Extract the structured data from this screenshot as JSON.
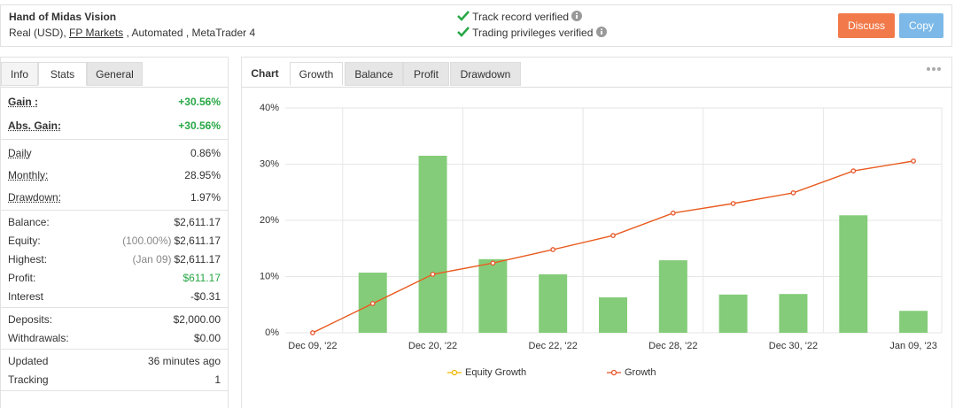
{
  "header": {
    "title": "Hand of Midas Vision",
    "account": "Real (USD),",
    "broker": "FP Markets",
    "details": ", Automated , MetaTrader 4",
    "verifications": [
      "Track record verified",
      "Trading privileges verified"
    ],
    "buttons": [
      "Discuss",
      "Copy"
    ]
  },
  "left_tabs": [
    "Info",
    "Stats",
    "General"
  ],
  "stats": [
    [
      {
        "label": "Gain :",
        "value": "+30.56%",
        "color": "#28a745"
      },
      {
        "label": "Abs. Gain:",
        "value": "+30.56%",
        "color": "#28a745"
      }
    ],
    [
      {
        "label": "Daily",
        "value": "0.86%"
      },
      {
        "label": "Monthly:",
        "value": "28.95%"
      },
      {
        "label": "Drawdown:",
        "value": "1.97%"
      }
    ],
    [
      {
        "label": "Balance:",
        "value": "$2,611.17"
      },
      {
        "label": "Equity:",
        "note": "(100.00%)",
        "value": "$2,611.17"
      },
      {
        "label": "Highest:",
        "note": "(Jan 09)",
        "value": "$2,611.17"
      },
      {
        "label": "Profit:",
        "value": "$611.17",
        "color": "#28a745"
      },
      {
        "label": "Interest",
        "value": "-$0.31"
      }
    ],
    [
      {
        "label": "Deposits:",
        "value": "$2,000.00"
      },
      {
        "label": "Withdrawals:",
        "value": "$0.00"
      }
    ],
    [
      {
        "label": "Updated",
        "value": "36 minutes ago"
      },
      {
        "label": "Tracking",
        "value": "1"
      }
    ]
  ],
  "chart_tabs": [
    "Chart",
    "Growth",
    "Balance",
    "Profit",
    "Drawdown"
  ],
  "chart_data": {
    "type": "combo",
    "categories": [
      "Dec 09, '22",
      null,
      "Dec 20, '22",
      null,
      "Dec 22, '22",
      null,
      "Dec 28, '22",
      null,
      "Dec 30, '22",
      null,
      "Jan 09, '23"
    ],
    "bars": {
      "color": "#84cc79",
      "values": [
        null,
        10.7,
        31.5,
        13.1,
        10.4,
        6.3,
        12.9,
        6.8,
        6.9,
        20.9,
        3.9
      ]
    },
    "series": [
      {
        "name": "Equity Growth",
        "color": "#f2b705",
        "values": [
          0,
          5.2,
          10.4,
          12.4,
          14.8,
          17.3,
          21.3,
          23.0,
          24.9,
          28.8,
          30.56
        ]
      },
      {
        "name": "Growth",
        "color": "#e8562a",
        "values": [
          0,
          5.2,
          10.4,
          12.4,
          14.8,
          17.3,
          21.3,
          23.0,
          24.9,
          28.8,
          30.56
        ]
      }
    ],
    "ylim": [
      0,
      40
    ],
    "yticks": [
      {
        "value": 0,
        "label": "0%"
      },
      {
        "value": 10,
        "label": "10%"
      },
      {
        "value": 20,
        "label": "20%"
      },
      {
        "value": 30,
        "label": "30%"
      },
      {
        "value": 40,
        "label": "40%"
      }
    ],
    "grid": true
  }
}
